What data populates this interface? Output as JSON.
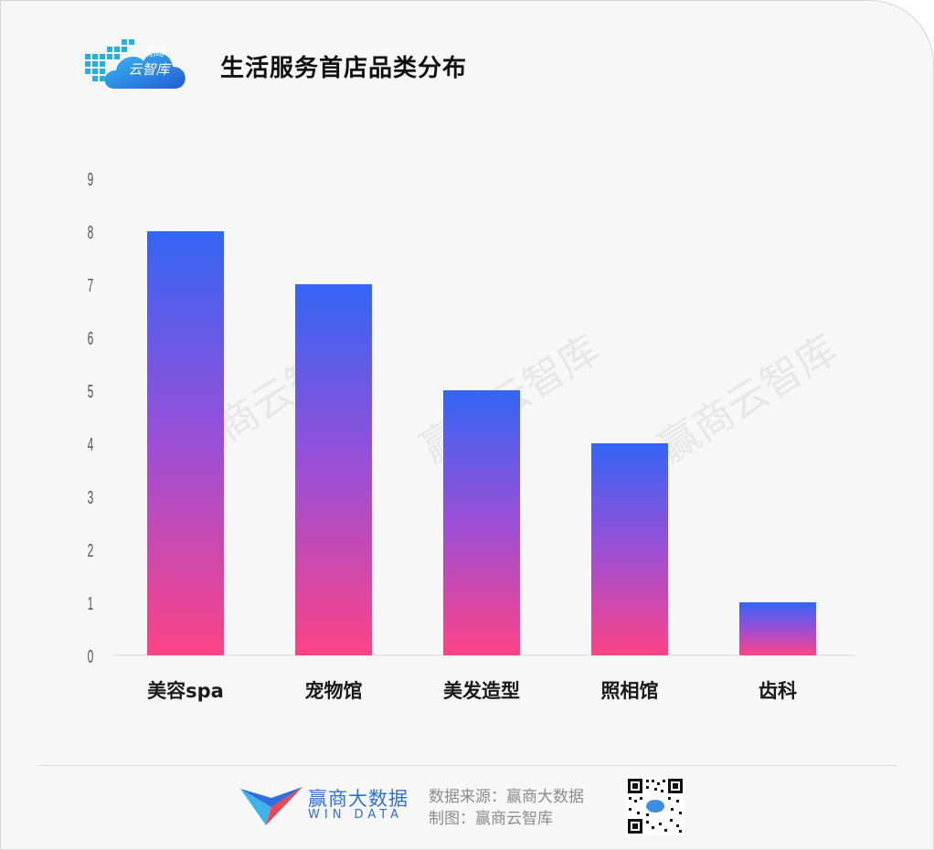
{
  "header": {
    "title": "生活服务首店品类分布",
    "logo_line1": "赢商",
    "logo_line2": "云智库"
  },
  "watermark": "赢商云智库",
  "chart_data": {
    "type": "bar",
    "title": "生活服务首店品类分布",
    "categories": [
      "美容spa",
      "宠物馆",
      "美发造型",
      "照相馆",
      "齿科"
    ],
    "values": [
      8,
      7,
      5,
      4,
      1
    ],
    "ylim": [
      0,
      9
    ],
    "yticks": [
      "0",
      "1",
      "2",
      "3",
      "4",
      "5",
      "6",
      "7",
      "8",
      "9"
    ],
    "xlabel": "",
    "ylabel": "",
    "grid": false,
    "legend": "none",
    "gradient_top": "#3365f4",
    "gradient_mid": "#9c4fd6",
    "gradient_bottom": "#fc4385",
    "bar_gradient": "blue-to-pink"
  },
  "footer": {
    "brand_name": "赢商大数据",
    "brand_sub": "WIN DATA",
    "source_line1": "数据来源：赢商大数据",
    "source_line2": "制图：赢商云智库"
  },
  "colors": {
    "accent_blue": "#2f6fdc",
    "axis_text": "#555555",
    "category_text": "#1a1a1a"
  }
}
